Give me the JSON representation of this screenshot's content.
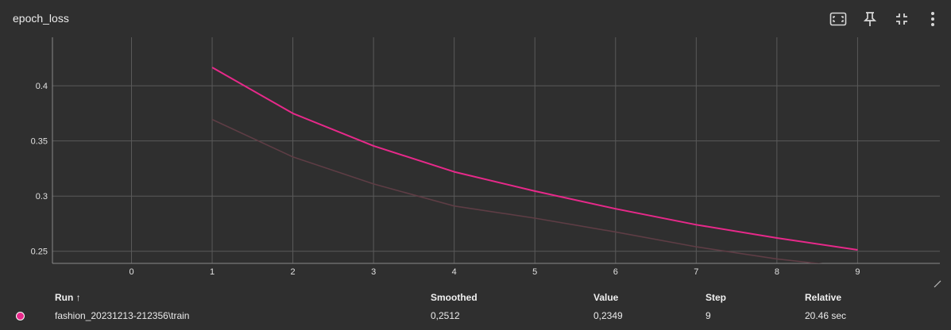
{
  "card": {
    "title": "epoch_loss"
  },
  "header_icons": [
    "fit-domain-icon",
    "pin-icon",
    "collapse-icon",
    "more-vert-icon"
  ],
  "colors": {
    "background": "#2f2f2f",
    "smoothed": "#e7298a",
    "raw": "#5e3d45",
    "grid": "#5a5a5a",
    "run_dot": "#e7298a"
  },
  "chart_data": {
    "type": "line",
    "title": "epoch_loss",
    "xlabel": "",
    "ylabel": "",
    "x_ticks": [
      "0",
      "1",
      "2",
      "3",
      "4",
      "5",
      "6",
      "7",
      "8",
      "9"
    ],
    "y_ticks": [
      "0.25",
      "0.3",
      "0.35",
      "0.4"
    ],
    "xlim": [
      -0.98,
      10.02
    ],
    "ylim": [
      0.239,
      0.444
    ],
    "grid": true,
    "series": [
      {
        "name": "fashion_20231213-212356\\train",
        "role": "smoothed",
        "color": "#e7298a",
        "x": [
          1,
          2,
          3,
          4,
          5,
          6,
          7,
          8,
          9
        ],
        "y": [
          0.4167,
          0.375,
          0.3455,
          0.322,
          0.3045,
          0.2885,
          0.274,
          0.262,
          0.2512
        ]
      },
      {
        "name": "fashion_20231213-212356\\train",
        "role": "raw",
        "color": "#5e3d45",
        "x": [
          1,
          2,
          3,
          4,
          5,
          6,
          7,
          8,
          9
        ],
        "y": [
          0.3695,
          0.3355,
          0.311,
          0.291,
          0.28,
          0.2675,
          0.254,
          0.243,
          0.2349
        ]
      }
    ]
  },
  "table": {
    "headers": {
      "run": "Run ↑",
      "smoothed": "Smoothed",
      "value": "Value",
      "step": "Step",
      "relative": "Relative"
    },
    "rows": [
      {
        "run": "fashion_20231213-212356\\train",
        "smoothed": "0,2512",
        "value": "0,2349",
        "step": "9",
        "relative": "20.46 sec"
      }
    ]
  }
}
